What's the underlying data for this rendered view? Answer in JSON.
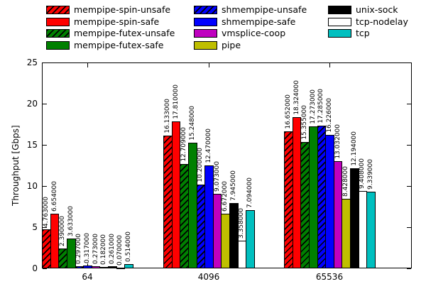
{
  "chart_data": {
    "type": "bar",
    "title": "",
    "xlabel": "",
    "ylabel": "Throughput [Gbps]",
    "ylim": [
      0,
      25
    ],
    "ytick_labels": [
      "0",
      "5",
      "10",
      "15",
      "20",
      "25"
    ],
    "categories": [
      "64",
      "4096",
      "65536"
    ],
    "grid": false,
    "legend_position": "top",
    "legend_columns": [
      [
        0,
        1,
        2,
        3
      ],
      [
        4,
        5,
        6,
        7
      ],
      [
        8,
        9,
        10
      ]
    ],
    "bar_value_decimals": 6,
    "series": [
      {
        "name": "mempipe-spin-unsafe",
        "color": "#ff0000",
        "hatch": true,
        "values": [
          4.763,
          16.133,
          16.652
        ],
        "value_labels": [
          "4.763000",
          "16.133000",
          "16.652000"
        ]
      },
      {
        "name": "mempipe-spin-safe",
        "color": "#ff0000",
        "hatch": false,
        "values": [
          6.654,
          17.81,
          18.324
        ],
        "value_labels": [
          "6.654000",
          "17.810000",
          "18.324000"
        ]
      },
      {
        "name": "mempipe-futex-unsafe",
        "color": "#008000",
        "hatch": true,
        "values": [
          2.39,
          12.709,
          15.355
        ],
        "value_labels": [
          "2.390000",
          "12.709000",
          "15.355000"
        ]
      },
      {
        "name": "mempipe-futex-safe",
        "color": "#008000",
        "hatch": false,
        "values": [
          3.633,
          15.248,
          17.273
        ],
        "value_labels": [
          "3.633000",
          "15.248000",
          "17.273000"
        ]
      },
      {
        "name": "shmempipe-unsafe",
        "color": "#0000ff",
        "hatch": true,
        "values": [
          0.297,
          10.2,
          17.285
        ],
        "value_labels": [
          "0.297000",
          "10.200000",
          "17.285000"
        ]
      },
      {
        "name": "shmempipe-safe",
        "color": "#0000ff",
        "hatch": false,
        "values": [
          0.317,
          12.47,
          16.226
        ],
        "value_labels": [
          "0.317000",
          "12.470000",
          "16.226000"
        ]
      },
      {
        "name": "vmsplice-coop",
        "color": "#bf00bf",
        "hatch": false,
        "values": [
          0.273,
          9.073,
          13.032
        ],
        "value_labels": [
          "0.273000",
          "9.073000",
          "13.032000"
        ]
      },
      {
        "name": "pipe",
        "color": "#bfbf00",
        "hatch": false,
        "values": [
          0.182,
          6.672,
          8.428
        ],
        "value_labels": [
          "0.182000",
          "6.672000",
          "8.428000"
        ]
      },
      {
        "name": "unix-sock",
        "color": "#000000",
        "hatch": false,
        "values": [
          0.261,
          7.945,
          12.194
        ],
        "value_labels": [
          "0.261000",
          "7.945000",
          "12.194000"
        ]
      },
      {
        "name": "tcp-nodelay",
        "color": "#ffffff",
        "hatch": false,
        "values": [
          0.07,
          3.358,
          9.408
        ],
        "value_labels": [
          "0.070000",
          "3.358000",
          "9.408000"
        ]
      },
      {
        "name": "tcp",
        "color": "#00bfbf",
        "hatch": false,
        "values": [
          0.514,
          7.094,
          9.339
        ],
        "value_labels": [
          "0.514000",
          "7.094000",
          "9.339000"
        ]
      }
    ]
  },
  "colors": {
    "background": "#ffffff",
    "axis": "#000000",
    "hatch_stroke": "#000000"
  }
}
